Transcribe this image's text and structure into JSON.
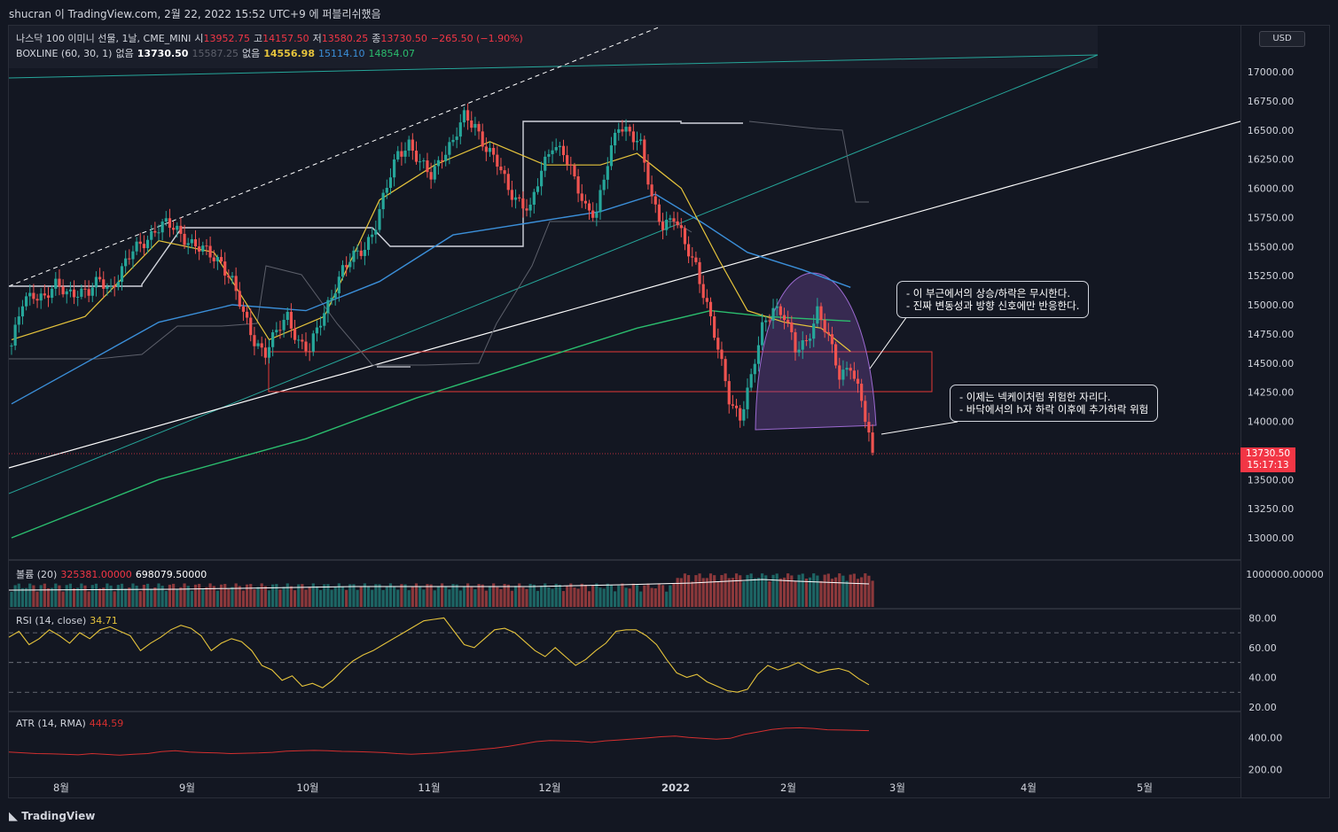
{
  "header": {
    "title": "shucran 이 TradingView.com, 2월 22, 2022 15:52 UTC+9 에 퍼블리쉬했음"
  },
  "footer": {
    "logo": "TradingView"
  },
  "currency_button": "USD",
  "legend_main": {
    "symbol": "나스닥 100 이미니 선물, 1날, CME_MINI",
    "open_label": "시",
    "open": "13952.75",
    "high_label": "고",
    "high": "14157.50",
    "low_label": "저",
    "low": "13580.25",
    "close_label": "종",
    "close": "13730.50",
    "change": "−265.50 (−1.90%)"
  },
  "legend_boxline": {
    "name": "BOXLINE (60, 30, 1)",
    "v1_label": "없음",
    "v1": "13730.50",
    "v2": "15587.25",
    "v3_label": "없음",
    "v3": "14556.98",
    "v4": "15114.10",
    "v5": "14854.07"
  },
  "legend_volume": {
    "name": "볼륨 (20)",
    "v1": "325381.00000",
    "v2": "698079.50000"
  },
  "legend_rsi": {
    "name": "RSI (14, close)",
    "value": "34.71"
  },
  "legend_atr": {
    "name": "ATR (14, RMA)",
    "value": "444.59"
  },
  "price_tag": {
    "price": "13730.50",
    "countdown": "15:17:13"
  },
  "callouts": {
    "top": "- 이 부근에서의 상승/하락은 무시한다.\n- 진짜 변동성과 방향 신호에만 반응한다.",
    "bottom": "- 이제는 넥케이처럼 위험한 자리다.\n- 바닥에서의 h자 하락 이후에 추가하락 위험"
  },
  "colors": {
    "background": "#131722",
    "up": "#26a69a",
    "down": "#ef5350",
    "ma_fast": "#e6c43c",
    "ma_mid": "#3b8fd9",
    "ma_slow": "#2bbd6e",
    "rsi": "#e6c43c",
    "atr": "#d32f2f"
  },
  "chart_data": {
    "type": "candlestick",
    "x_labels": [
      "8월",
      "9월",
      "10월",
      "11월",
      "12월",
      "2022",
      "2월",
      "3월",
      "4월",
      "5월"
    ],
    "price_axis": {
      "ticks": [
        "17000.00",
        "16750.00",
        "16500.00",
        "16250.00",
        "16000.00",
        "15750.00",
        "15500.00",
        "15250.00",
        "15000.00",
        "14750.00",
        "14500.00",
        "14250.00",
        "14000.00",
        "13500.00",
        "13250.00",
        "13000.00"
      ],
      "ylim": [
        12850,
        17300
      ]
    },
    "price_path": [
      [
        0,
        14650
      ],
      [
        3,
        15000
      ],
      [
        6,
        15100
      ],
      [
        9,
        15080
      ],
      [
        12,
        15150
      ],
      [
        15,
        15100
      ],
      [
        18,
        15130
      ],
      [
        21,
        15100
      ],
      [
        24,
        15200
      ],
      [
        27,
        15150
      ],
      [
        30,
        15300
      ],
      [
        33,
        15450
      ],
      [
        36,
        15550
      ],
      [
        39,
        15650
      ],
      [
        42,
        15680
      ],
      [
        45,
        15640
      ],
      [
        48,
        15560
      ],
      [
        51,
        15480
      ],
      [
        54,
        15420
      ],
      [
        57,
        15380
      ],
      [
        60,
        15200
      ],
      [
        63,
        14900
      ],
      [
        66,
        14700
      ],
      [
        69,
        14600
      ],
      [
        72,
        14750
      ],
      [
        75,
        14900
      ],
      [
        78,
        14700
      ],
      [
        81,
        14600
      ],
      [
        84,
        14850
      ],
      [
        87,
        15100
      ],
      [
        90,
        15300
      ],
      [
        93,
        15400
      ],
      [
        96,
        15500
      ],
      [
        99,
        15700
      ],
      [
        102,
        16000
      ],
      [
        105,
        16300
      ],
      [
        108,
        16400
      ],
      [
        111,
        16200
      ],
      [
        114,
        16100
      ],
      [
        117,
        16300
      ],
      [
        120,
        16400
      ],
      [
        123,
        16600
      ],
      [
        126,
        16550
      ],
      [
        129,
        16350
      ],
      [
        132,
        16200
      ],
      [
        135,
        16000
      ],
      [
        138,
        15900
      ],
      [
        141,
        15800
      ],
      [
        144,
        16150
      ],
      [
        147,
        16400
      ],
      [
        150,
        16300
      ],
      [
        153,
        16050
      ],
      [
        156,
        15850
      ],
      [
        159,
        15800
      ],
      [
        162,
        16200
      ],
      [
        165,
        16550
      ],
      [
        168,
        16500
      ],
      [
        171,
        16350
      ],
      [
        174,
        15900
      ],
      [
        177,
        15700
      ],
      [
        180,
        15750
      ],
      [
        183,
        15500
      ],
      [
        186,
        15350
      ],
      [
        189,
        15000
      ],
      [
        192,
        14600
      ],
      [
        195,
        14200
      ],
      [
        198,
        14050
      ],
      [
        201,
        14350
      ],
      [
        204,
        14800
      ],
      [
        207,
        15000
      ],
      [
        210,
        14900
      ],
      [
        213,
        14600
      ],
      [
        216,
        14700
      ],
      [
        219,
        14950
      ],
      [
        222,
        14700
      ],
      [
        225,
        14400
      ],
      [
        228,
        14500
      ],
      [
        231,
        14150
      ],
      [
        234,
        13730
      ]
    ],
    "ma_fast_path": [
      [
        0,
        14700
      ],
      [
        20,
        14900
      ],
      [
        40,
        15550
      ],
      [
        55,
        15450
      ],
      [
        70,
        14700
      ],
      [
        85,
        14900
      ],
      [
        100,
        15900
      ],
      [
        115,
        16200
      ],
      [
        130,
        16400
      ],
      [
        145,
        16200
      ],
      [
        160,
        16200
      ],
      [
        170,
        16300
      ],
      [
        182,
        16000
      ],
      [
        192,
        15400
      ],
      [
        200,
        14950
      ],
      [
        210,
        14850
      ],
      [
        220,
        14800
      ],
      [
        228,
        14600
      ]
    ],
    "ma_mid_path": [
      [
        0,
        14150
      ],
      [
        20,
        14500
      ],
      [
        40,
        14850
      ],
      [
        60,
        15000
      ],
      [
        80,
        14950
      ],
      [
        100,
        15200
      ],
      [
        120,
        15600
      ],
      [
        140,
        15700
      ],
      [
        160,
        15800
      ],
      [
        175,
        15950
      ],
      [
        188,
        15700
      ],
      [
        200,
        15450
      ],
      [
        215,
        15300
      ],
      [
        228,
        15150
      ]
    ],
    "ma_slow_path": [
      [
        0,
        13000
      ],
      [
        40,
        13500
      ],
      [
        80,
        13850
      ],
      [
        110,
        14200
      ],
      [
        140,
        14500
      ],
      [
        170,
        14800
      ],
      [
        190,
        14950
      ],
      [
        205,
        14900
      ],
      [
        228,
        14860
      ]
    ],
    "volume": {
      "label": "볼륨 (20)",
      "axis_tick": "1000000.00000"
    },
    "rsi": {
      "ticks": [
        "80.00",
        "60.00",
        "40.00",
        "20.00"
      ],
      "ylim": [
        20,
        82
      ],
      "levels": [
        70,
        50,
        30
      ],
      "values": [
        67,
        71,
        62,
        66,
        72,
        68,
        63,
        70,
        66,
        72,
        74,
        71,
        68,
        58,
        63,
        67,
        72,
        75,
        73,
        68,
        58,
        63,
        66,
        64,
        58,
        48,
        45,
        38,
        41,
        34,
        36,
        33,
        38,
        45,
        51,
        55,
        58,
        62,
        66,
        70,
        74,
        78,
        79,
        80,
        71,
        62,
        60,
        66,
        72,
        73,
        70,
        64,
        58,
        54,
        60,
        54,
        48,
        52,
        58,
        63,
        71,
        72,
        72,
        68,
        62,
        52,
        43,
        40,
        42,
        37,
        34,
        31,
        30,
        32,
        42,
        48,
        45,
        47,
        50,
        46,
        43,
        45,
        46,
        44,
        39,
        35
      ]
    },
    "atr": {
      "ticks": [
        "400.00",
        "200.00"
      ],
      "ylim": [
        130,
        520
      ],
      "values": [
        310,
        305,
        300,
        298,
        296,
        292,
        300,
        295,
        290,
        296,
        300,
        312,
        318,
        310,
        306,
        304,
        300,
        302,
        304,
        308,
        315,
        318,
        320,
        318,
        314,
        312,
        310,
        306,
        300,
        296,
        300,
        304,
        312,
        318,
        326,
        334,
        345,
        360,
        375,
        382,
        380,
        378,
        370,
        380,
        386,
        392,
        398,
        406,
        410,
        402,
        396,
        390,
        396,
        420,
        436,
        452,
        460,
        462,
        458,
        450,
        448,
        446,
        444
      ]
    }
  }
}
